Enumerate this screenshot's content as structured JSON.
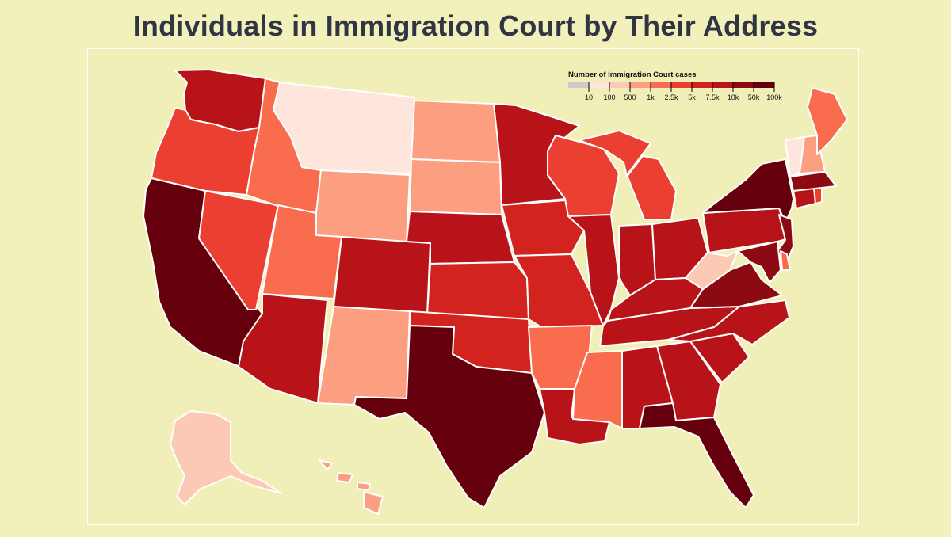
{
  "title": "Individuals in Immigration Court by Their Address",
  "legend": {
    "title": "Number of Immigration Court cases",
    "ticks": [
      "10",
      "100",
      "500",
      "1k",
      "2.5k",
      "5k",
      "7.5k",
      "10k",
      "50k",
      "100k"
    ],
    "colors": [
      "#cccccc",
      "#fee6dc",
      "#fcc9b4",
      "#fc9f80",
      "#f96c4e",
      "#eb3f32",
      "#d2231f",
      "#b71319",
      "#8c0b13",
      "#67000d"
    ]
  },
  "map_data": {
    "metric": "Number of Immigration Court cases",
    "states": [
      {
        "id": "WA",
        "bin": 7
      },
      {
        "id": "OR",
        "bin": 5
      },
      {
        "id": "CA",
        "bin": 9
      },
      {
        "id": "NV",
        "bin": 5
      },
      {
        "id": "ID",
        "bin": 4
      },
      {
        "id": "MT",
        "bin": 1
      },
      {
        "id": "WY",
        "bin": 3
      },
      {
        "id": "UT",
        "bin": 4
      },
      {
        "id": "AZ",
        "bin": 7
      },
      {
        "id": "CO",
        "bin": 7
      },
      {
        "id": "NM",
        "bin": 3
      },
      {
        "id": "ND",
        "bin": 3
      },
      {
        "id": "SD",
        "bin": 3
      },
      {
        "id": "NE",
        "bin": 7
      },
      {
        "id": "KS",
        "bin": 6
      },
      {
        "id": "OK",
        "bin": 6
      },
      {
        "id": "TX",
        "bin": 9
      },
      {
        "id": "MN",
        "bin": 7
      },
      {
        "id": "IA",
        "bin": 6
      },
      {
        "id": "MO",
        "bin": 6
      },
      {
        "id": "AR",
        "bin": 4
      },
      {
        "id": "LA",
        "bin": 7
      },
      {
        "id": "WI",
        "bin": 5
      },
      {
        "id": "IL",
        "bin": 7
      },
      {
        "id": "MI",
        "bin": 5
      },
      {
        "id": "IN",
        "bin": 7
      },
      {
        "id": "OH",
        "bin": 7
      },
      {
        "id": "KY",
        "bin": 7
      },
      {
        "id": "TN",
        "bin": 7
      },
      {
        "id": "MS",
        "bin": 4
      },
      {
        "id": "AL",
        "bin": 7
      },
      {
        "id": "GA",
        "bin": 7
      },
      {
        "id": "FL",
        "bin": 9
      },
      {
        "id": "SC",
        "bin": 7
      },
      {
        "id": "NC",
        "bin": 7
      },
      {
        "id": "VA",
        "bin": 8
      },
      {
        "id": "WV",
        "bin": 2
      },
      {
        "id": "PA",
        "bin": 7
      },
      {
        "id": "NY",
        "bin": 9
      },
      {
        "id": "NJ",
        "bin": 8
      },
      {
        "id": "DE",
        "bin": 4
      },
      {
        "id": "MD",
        "bin": 8
      },
      {
        "id": "CT",
        "bin": 7
      },
      {
        "id": "RI",
        "bin": 5
      },
      {
        "id": "MA",
        "bin": 8
      },
      {
        "id": "VT",
        "bin": 1
      },
      {
        "id": "NH",
        "bin": 3
      },
      {
        "id": "ME",
        "bin": 4
      },
      {
        "id": "AK",
        "bin": 2
      },
      {
        "id": "HI",
        "bin": 3
      }
    ]
  }
}
